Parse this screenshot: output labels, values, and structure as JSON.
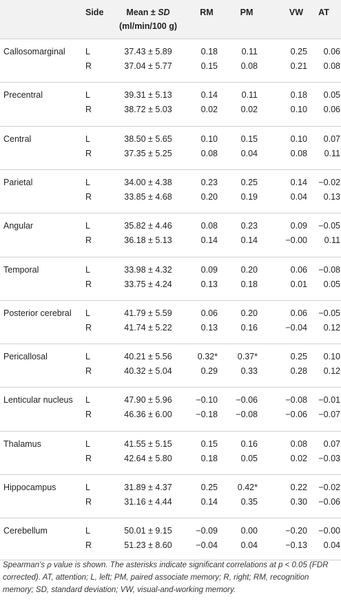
{
  "header": {
    "side": "Side",
    "mean": "Mean ±",
    "sd": "SD",
    "unit": "(ml/min/100 g)",
    "measures": [
      "RM",
      "PM",
      "VW",
      "AT"
    ]
  },
  "groups": [
    {
      "region": "Callosomarginal",
      "rows": [
        [
          "L",
          "37.43 ± 5.89",
          "0.18",
          "0.11",
          "0.25",
          "0.06"
        ],
        [
          "R",
          "37.04 ± 5.77",
          "0.15",
          "0.08",
          "0.21",
          "0.08"
        ]
      ]
    },
    {
      "region": "Precentral",
      "rows": [
        [
          "L",
          "39.31 ± 5.13",
          "0.14",
          "0.11",
          "0.18",
          "0.05"
        ],
        [
          "R",
          "38.72 ± 5.03",
          "0.02",
          "0.02",
          "0.10",
          "0.06"
        ]
      ]
    },
    {
      "region": "Central",
      "rows": [
        [
          "L",
          "38.50 ± 5.65",
          "0.10",
          "0.15",
          "0.10",
          "0.07"
        ],
        [
          "R",
          "37.35 ± 5.25",
          "0.08",
          "0.04",
          "0.08",
          "0.11"
        ]
      ]
    },
    {
      "region": "Parietal",
      "rows": [
        [
          "L",
          "34.00 ± 4.38",
          "0.23",
          "0.25",
          "0.14",
          "−0.02"
        ],
        [
          "R",
          "33.85 ± 4.68",
          "0.20",
          "0.19",
          "0.04",
          "0.13"
        ]
      ]
    },
    {
      "region": "Angular",
      "rows": [
        [
          "L",
          "35.82 ± 4.46",
          "0.08",
          "0.23",
          "0.09",
          "−0.05"
        ],
        [
          "R",
          "36.18 ± 5.13",
          "0.14",
          "0.14",
          "−0.00",
          "0.11"
        ]
      ]
    },
    {
      "region": "Temporal",
      "rows": [
        [
          "L",
          "33.98 ± 4.32",
          "0.09",
          "0.20",
          "0.06",
          "−0.08"
        ],
        [
          "R",
          "33.75 ± 4.24",
          "0.13",
          "0.18",
          "0.01",
          "0.05"
        ]
      ]
    },
    {
      "region": "Posterior cerebral",
      "rows": [
        [
          "L",
          "41.79 ± 5.59",
          "0.06",
          "0.20",
          "0.06",
          "−0.05"
        ],
        [
          "R",
          "41.74 ± 5.22",
          "0.13",
          "0.16",
          "−0.04",
          "0.12"
        ]
      ]
    },
    {
      "region": "Pericallosal",
      "rows": [
        [
          "L",
          "40.21 ± 5.56",
          "0.32*",
          "0.37*",
          "0.25",
          "0.10"
        ],
        [
          "R",
          "40.32 ± 5.04",
          "0.29",
          "0.33",
          "0.28",
          "0.12"
        ]
      ]
    },
    {
      "region": "Lenticular nucleus",
      "rows": [
        [
          "L",
          "47.90 ± 5.96",
          "−0.10",
          "−0.06",
          "−0.08",
          "−0.01"
        ],
        [
          "R",
          "46.36 ± 6.00",
          "−0.18",
          "−0.08",
          "−0.06",
          "−0.07"
        ]
      ]
    },
    {
      "region": "Thalamus",
      "rows": [
        [
          "L",
          "41.55 ± 5.15",
          "0.15",
          "0.16",
          "0.08",
          "0.07"
        ],
        [
          "R",
          "42.64 ± 5.80",
          "0.18",
          "0.05",
          "0.02",
          "−0.03"
        ]
      ]
    },
    {
      "region": "Hippocampus",
      "rows": [
        [
          "L",
          "31.89 ± 4.37",
          "0.25",
          "0.42*",
          "0.22",
          "−0.02"
        ],
        [
          "R",
          "31.16 ± 4.44",
          "0.14",
          "0.35",
          "0.30",
          "−0.06"
        ]
      ]
    },
    {
      "region": "Cerebellum",
      "rows": [
        [
          "L",
          "50.01 ± 9.15",
          "−0.09",
          "0.00",
          "−0.20",
          "−0.00"
        ],
        [
          "R",
          "51.23 ± 8.60",
          "−0.04",
          "0.04",
          "−0.13",
          "0.04"
        ]
      ]
    }
  ],
  "footnote": "Spearman's ρ value is shown. The asterisks indicate significant correlations at p < 0.05 (FDR corrected). AT, attention; L, left; PM, paired associate memory; R, right; RM, recognition memory; SD, standard deviation; VW, visual-and-working memory."
}
